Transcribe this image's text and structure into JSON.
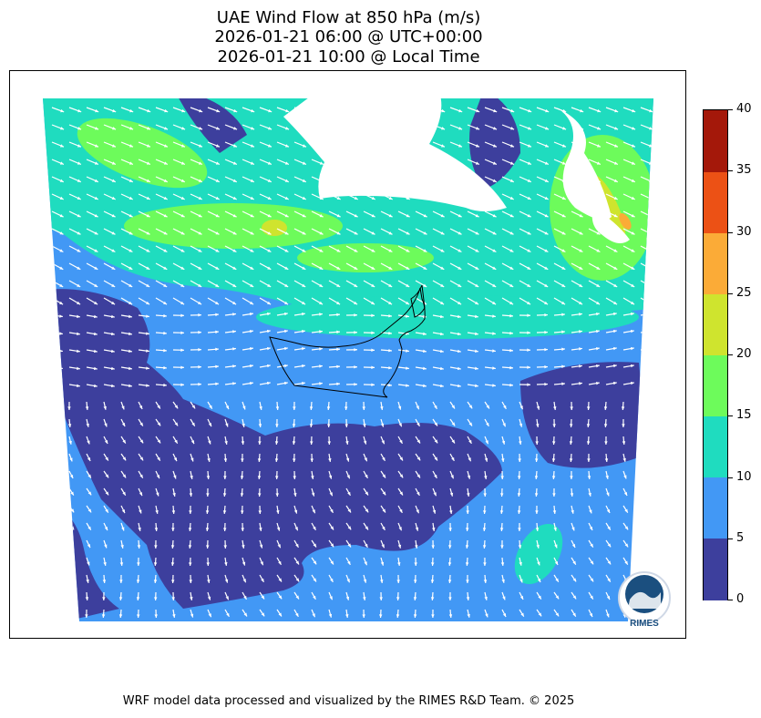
{
  "title": {
    "line1": "UAE Wind Flow at 850 hPa (m/s)",
    "line2": "2026-01-21 06:00 @ UTC+00:00",
    "line3": "2026-01-21 10:00 @ Local Time"
  },
  "colorbar": {
    "units": "m/s",
    "ticks": [
      "0",
      "5",
      "10",
      "15",
      "20",
      "25",
      "30",
      "35",
      "40"
    ],
    "bins": [
      {
        "range": "0-5",
        "color": "#3d3f9d"
      },
      {
        "range": "5-10",
        "color": "#4298f5"
      },
      {
        "range": "10-15",
        "color": "#1fdcbf"
      },
      {
        "range": "15-20",
        "color": "#6dfb5b"
      },
      {
        "range": "20-25",
        "color": "#cfe42e"
      },
      {
        "range": "25-30",
        "color": "#fbab37"
      },
      {
        "range": "30-35",
        "color": "#ec5115"
      },
      {
        "range": "35-40",
        "color": "#a4180a"
      }
    ]
  },
  "logo": {
    "text": "RIMES"
  },
  "footer": "WRF model data processed and visualized by the RIMES R&D Team. © 2025",
  "colors": {
    "arrow": "#ffffff",
    "border": "#000000",
    "land_mask": "#ffffff"
  }
}
